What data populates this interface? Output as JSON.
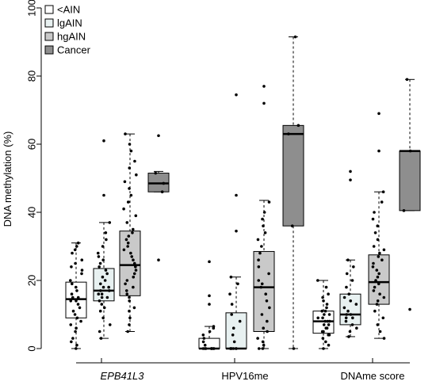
{
  "chart_data": {
    "type": "box",
    "title": "",
    "xlabel": "",
    "ylabel": "DNA methylation (%)",
    "ylim": [
      0,
      100
    ],
    "yticks": [
      0,
      20,
      40,
      60,
      80,
      100
    ],
    "grid": false,
    "legend": {
      "position": "top-left",
      "entries": [
        {
          "label": "<AIN",
          "color": "#ffffff"
        },
        {
          "label": "lgAIN",
          "color": "#e8f1f1"
        },
        {
          "label": "hgAIN",
          "color": "#c9c9c9"
        },
        {
          "label": "Cancer",
          "color": "#8e8e8e"
        }
      ]
    },
    "groups": [
      {
        "label": "EPB41L3",
        "italic": true,
        "boxes": [
          {
            "series": "<AIN",
            "min": 0,
            "q1": 9,
            "median": 14.5,
            "q3": 19.5,
            "max": 31,
            "outliers": [],
            "points": [
              0,
              1,
              2,
              3,
              5,
              6,
              7,
              8,
              9,
              10,
              11,
              12,
              13,
              14,
              14,
              15,
              15,
              16,
              17,
              18,
              19,
              20,
              22,
              23,
              24,
              25,
              26,
              28,
              29,
              30,
              31
            ]
          },
          {
            "series": "lgAIN",
            "min": 3,
            "q1": 14,
            "median": 17,
            "q3": 23.5,
            "max": 37,
            "outliers": [
              45,
              61
            ],
            "points": [
              3,
              5,
              7,
              9,
              11,
              12,
              13,
              14,
              15,
              15,
              16,
              16,
              17,
              17,
              18,
              18,
              19,
              20,
              21,
              22,
              23,
              24,
              25,
              26,
              27,
              28,
              30,
              32,
              34,
              37,
              45,
              61
            ]
          },
          {
            "series": "hgAIN",
            "min": 5,
            "q1": 15.5,
            "median": 24.5,
            "q3": 34.5,
            "max": 63,
            "outliers": [],
            "points": [
              5,
              7,
              9,
              11,
              12,
              14,
              15,
              16,
              17,
              18,
              19,
              20,
              21,
              22,
              23,
              24,
              25,
              26,
              27,
              28,
              29,
              30,
              31,
              32,
              33,
              34,
              35,
              37,
              39,
              41,
              43,
              45,
              47,
              49,
              51,
              53,
              55,
              58,
              60,
              63
            ]
          },
          {
            "series": "Cancer",
            "min": 46,
            "q1": 46,
            "median": 48.5,
            "q3": 51.5,
            "max": 52,
            "outliers": [
              26,
              62.5
            ],
            "points": [
              26,
              46,
              48.5,
              51.5,
              62.5
            ]
          }
        ]
      },
      {
        "label": "HPV16me",
        "italic": false,
        "boxes": [
          {
            "series": "<AIN",
            "min": 0,
            "q1": 0,
            "median": 0,
            "q3": 3,
            "max": 6.5,
            "outliers": [
              13,
              15.5,
              25.5
            ],
            "points": [
              0,
              0,
              0,
              0,
              0,
              0,
              0,
              0,
              1,
              2,
              3,
              4,
              5,
              6,
              6.5,
              13,
              15.5,
              25.5
            ]
          },
          {
            "series": "lgAIN",
            "min": 0,
            "q1": 0,
            "median": 0,
            "q3": 10.5,
            "max": 21,
            "outliers": [
              34.5,
              45,
              74.5
            ],
            "points": [
              0,
              0,
              0,
              0,
              0,
              0,
              2,
              4,
              6,
              8,
              10,
              13,
              16,
              19,
              21,
              34.5,
              45,
              74.5
            ]
          },
          {
            "series": "hgAIN",
            "min": 0,
            "q1": 5,
            "median": 18,
            "q3": 28.5,
            "max": 43.5,
            "outliers": [
              72,
              77
            ],
            "points": [
              0,
              0,
              1,
              2,
              3,
              5,
              6,
              8,
              10,
              12,
              14,
              16,
              18,
              19,
              20,
              22,
              24,
              26,
              28,
              30,
              32,
              34,
              36,
              38,
              40,
              43,
              72,
              77
            ]
          },
          {
            "series": "Cancer",
            "min": 0,
            "q1": 36,
            "median": 63,
            "q3": 65.5,
            "max": 91.5,
            "outliers": [],
            "points": [
              0,
              36,
              63,
              65.5,
              91.5
            ]
          }
        ]
      },
      {
        "label": "DNAme score",
        "italic": false,
        "boxes": [
          {
            "series": "<AIN",
            "min": 0,
            "q1": 4.5,
            "median": 8,
            "q3": 11,
            "max": 20,
            "outliers": [],
            "points": [
              0,
              1,
              2,
              3,
              4,
              4,
              5,
              5,
              6,
              6,
              7,
              7,
              8,
              8,
              8,
              9,
              9,
              10,
              10,
              11,
              11,
              12,
              13,
              14,
              15,
              16,
              18,
              20
            ]
          },
          {
            "series": "lgAIN",
            "min": 3.5,
            "q1": 7,
            "median": 10,
            "q3": 16,
            "max": 26,
            "outliers": [
              49.5,
              52
            ],
            "points": [
              3.5,
              5,
              6,
              7,
              8,
              9,
              9,
              10,
              10,
              11,
              12,
              13,
              14,
              15,
              16,
              18,
              20,
              22,
              24,
              26,
              49.5,
              52
            ]
          },
          {
            "series": "hgAIN",
            "min": 3,
            "q1": 13,
            "median": 19.5,
            "q3": 27.5,
            "max": 46,
            "outliers": [
              58,
              69
            ],
            "points": [
              3,
              5,
              7,
              9,
              11,
              13,
              14,
              15,
              16,
              17,
              18,
              19,
              20,
              21,
              22,
              23,
              24,
              25,
              26,
              27,
              28,
              29,
              30,
              32,
              34,
              36,
              38,
              40,
              43,
              46,
              58,
              69
            ]
          },
          {
            "series": "Cancer",
            "min": 40.5,
            "q1": 40.5,
            "median": 58,
            "q3": 58,
            "max": 79,
            "outliers": [
              11.5
            ],
            "points": [
              11.5,
              40.5,
              58,
              79
            ]
          }
        ]
      }
    ]
  }
}
